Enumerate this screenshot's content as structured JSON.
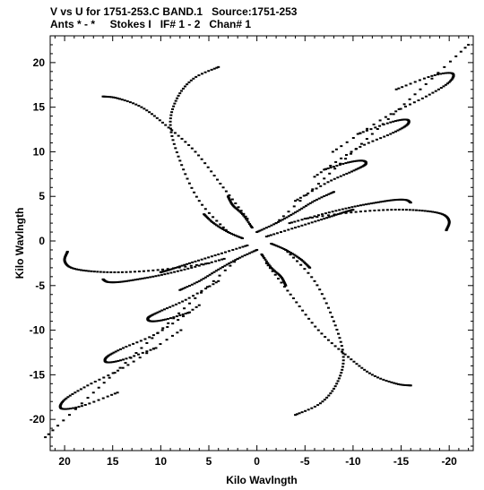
{
  "header": {
    "line1": "V vs U for 1751-253.C BAND.1   Source:1751-253",
    "line2": "Ants * - *     Stokes I   IF# 1 - 2   Chan# 1"
  },
  "chart_data": {
    "type": "scatter",
    "title": "V vs U for 1751-253.C BAND.1   Source:1751-253",
    "subtitle": "Ants * - *     Stokes I   IF# 1 - 2   Chan# 1",
    "xlabel": "Kilo Wavlngth",
    "ylabel": "Kilo Wavlngth",
    "xlim": [
      21.5,
      -22.5
    ],
    "ylim": [
      -23.5,
      23
    ],
    "x_ticks": [
      20,
      15,
      10,
      5,
      0,
      -5,
      -10,
      -15,
      -20
    ],
    "y_ticks": [
      20,
      15,
      10,
      5,
      0,
      -5,
      -10,
      -15,
      -20
    ],
    "grid": false,
    "legend": "none",
    "marker_color": "#000000",
    "uv_tracks": [
      {
        "x": [
          -4.0,
          -7.4,
          -10.1,
          -11.3,
          -11.0,
          -9.5,
          -7.0
        ],
        "y": [
          4.5,
          6.6,
          7.9,
          8.6,
          9.0,
          8.8,
          8.0
        ]
      },
      {
        "x": [
          -6.0,
          -10.3,
          -13.9,
          -15.6,
          -15.6,
          -13.9,
          -10.5
        ],
        "y": [
          7.2,
          10.3,
          12.0,
          13.0,
          13.6,
          13.3,
          12.0
        ]
      },
      {
        "x": [
          -7.9,
          -13.4,
          -17.6,
          -20.0,
          -20.3,
          -18.2,
          -14.5
        ],
        "y": [
          10.0,
          13.9,
          16.2,
          17.8,
          18.8,
          18.5,
          17.0
        ]
      },
      {
        "x": [
          -3.4,
          -6.8,
          -9.9,
          -12.4,
          -14.3,
          -15.5,
          -16.0
        ],
        "y": [
          2.0,
          3.0,
          3.8,
          4.3,
          4.6,
          4.6,
          4.3
        ]
      },
      {
        "x": [
          -5.0,
          -9.8,
          -14.0,
          -17.2,
          -19.3,
          -20.0,
          -19.7
        ],
        "y": [
          2.5,
          3.2,
          3.5,
          3.4,
          3.0,
          2.2,
          1.2
        ]
      },
      {
        "x": [
          -3.0,
          -6.0,
          -8.0,
          -9.0,
          -8.3,
          -6.6,
          -4.0
        ],
        "y": [
          -1.0,
          -4.5,
          -9.0,
          -13.0,
          -16.0,
          -18.2,
          -19.5
        ]
      },
      {
        "x": [
          -1.0,
          -3.5,
          -6.4,
          -9.5,
          -12.0,
          -14.5,
          -16.0
        ],
        "y": [
          -2.5,
          -6.0,
          -10.0,
          -13.0,
          -15.0,
          -16.0,
          -16.2
        ]
      },
      {
        "x": [
          4.0,
          7.4,
          10.1,
          11.3,
          11.0,
          9.5,
          7.0
        ],
        "y": [
          -4.5,
          -6.6,
          -7.9,
          -8.6,
          -9.0,
          -8.8,
          -8.0
        ]
      },
      {
        "x": [
          6.0,
          10.3,
          13.9,
          15.6,
          15.6,
          13.9,
          10.5
        ],
        "y": [
          -7.2,
          -10.3,
          -12.0,
          -13.0,
          -13.6,
          -13.3,
          -12.0
        ]
      },
      {
        "x": [
          7.9,
          13.4,
          17.6,
          20.0,
          20.3,
          18.2,
          14.5
        ],
        "y": [
          -10.0,
          -13.9,
          -16.2,
          -17.8,
          -18.8,
          -18.5,
          -17.0
        ]
      },
      {
        "x": [
          3.4,
          6.8,
          9.9,
          12.4,
          14.3,
          15.5,
          16.0
        ],
        "y": [
          -2.0,
          -3.0,
          -3.8,
          -4.3,
          -4.6,
          -4.6,
          -4.3
        ]
      },
      {
        "x": [
          5.0,
          9.8,
          14.0,
          17.2,
          19.3,
          20.0,
          19.7
        ],
        "y": [
          -2.5,
          -3.2,
          -3.5,
          -3.4,
          -3.0,
          -2.2,
          -1.2
        ]
      },
      {
        "x": [
          3.0,
          6.0,
          8.0,
          9.0,
          8.3,
          6.6,
          4.0
        ],
        "y": [
          1.0,
          4.5,
          9.0,
          13.0,
          16.0,
          18.2,
          19.5
        ]
      },
      {
        "x": [
          1.0,
          3.5,
          6.4,
          9.5,
          12.0,
          14.5,
          16.0
        ],
        "y": [
          2.5,
          6.0,
          10.0,
          13.0,
          15.0,
          16.0,
          16.2
        ]
      },
      {
        "x": [
          -2.0,
          -7.0,
          -12.0,
          -17.0,
          -22.0
        ],
        "y": [
          2.0,
          7.0,
          12.0,
          17.0,
          22.0
        ]
      },
      {
        "x": [
          2.0,
          7.0,
          12.0,
          17.0,
          22.0
        ],
        "y": [
          -2.0,
          -7.0,
          -12.0,
          -17.0,
          -22.0
        ]
      },
      {
        "x": [
          -1.0,
          -4.0,
          -7.0,
          -9.0,
          -10.0
        ],
        "y": [
          0.5,
          1.5,
          2.5,
          3.2,
          3.5
        ]
      },
      {
        "x": [
          1.0,
          4.0,
          7.0,
          9.0,
          10.0
        ],
        "y": [
          -0.5,
          -1.5,
          -2.5,
          -3.2,
          -3.5
        ]
      },
      {
        "x": [
          -1.5,
          -3.0,
          -4.5,
          -5.5
        ],
        "y": [
          -0.3,
          -1.0,
          -2.0,
          -3.0
        ]
      },
      {
        "x": [
          1.5,
          3.0,
          4.5,
          5.5
        ],
        "y": [
          0.3,
          1.0,
          2.0,
          3.0
        ]
      },
      {
        "x": [
          0.0,
          -2.0,
          -4.0,
          -6.0,
          -8.0
        ],
        "y": [
          1.0,
          2.0,
          3.2,
          4.5,
          5.5
        ]
      },
      {
        "x": [
          0.0,
          2.0,
          4.0,
          6.0,
          8.0
        ],
        "y": [
          -1.0,
          -2.0,
          -3.2,
          -4.5,
          -5.5
        ]
      },
      {
        "x": [
          -0.5,
          -1.5,
          -2.5,
          -3.0
        ],
        "y": [
          -1.5,
          -3.0,
          -4.0,
          -5.0
        ]
      },
      {
        "x": [
          0.5,
          1.5,
          2.5,
          3.0
        ],
        "y": [
          1.5,
          3.0,
          4.0,
          5.0
        ]
      }
    ]
  }
}
